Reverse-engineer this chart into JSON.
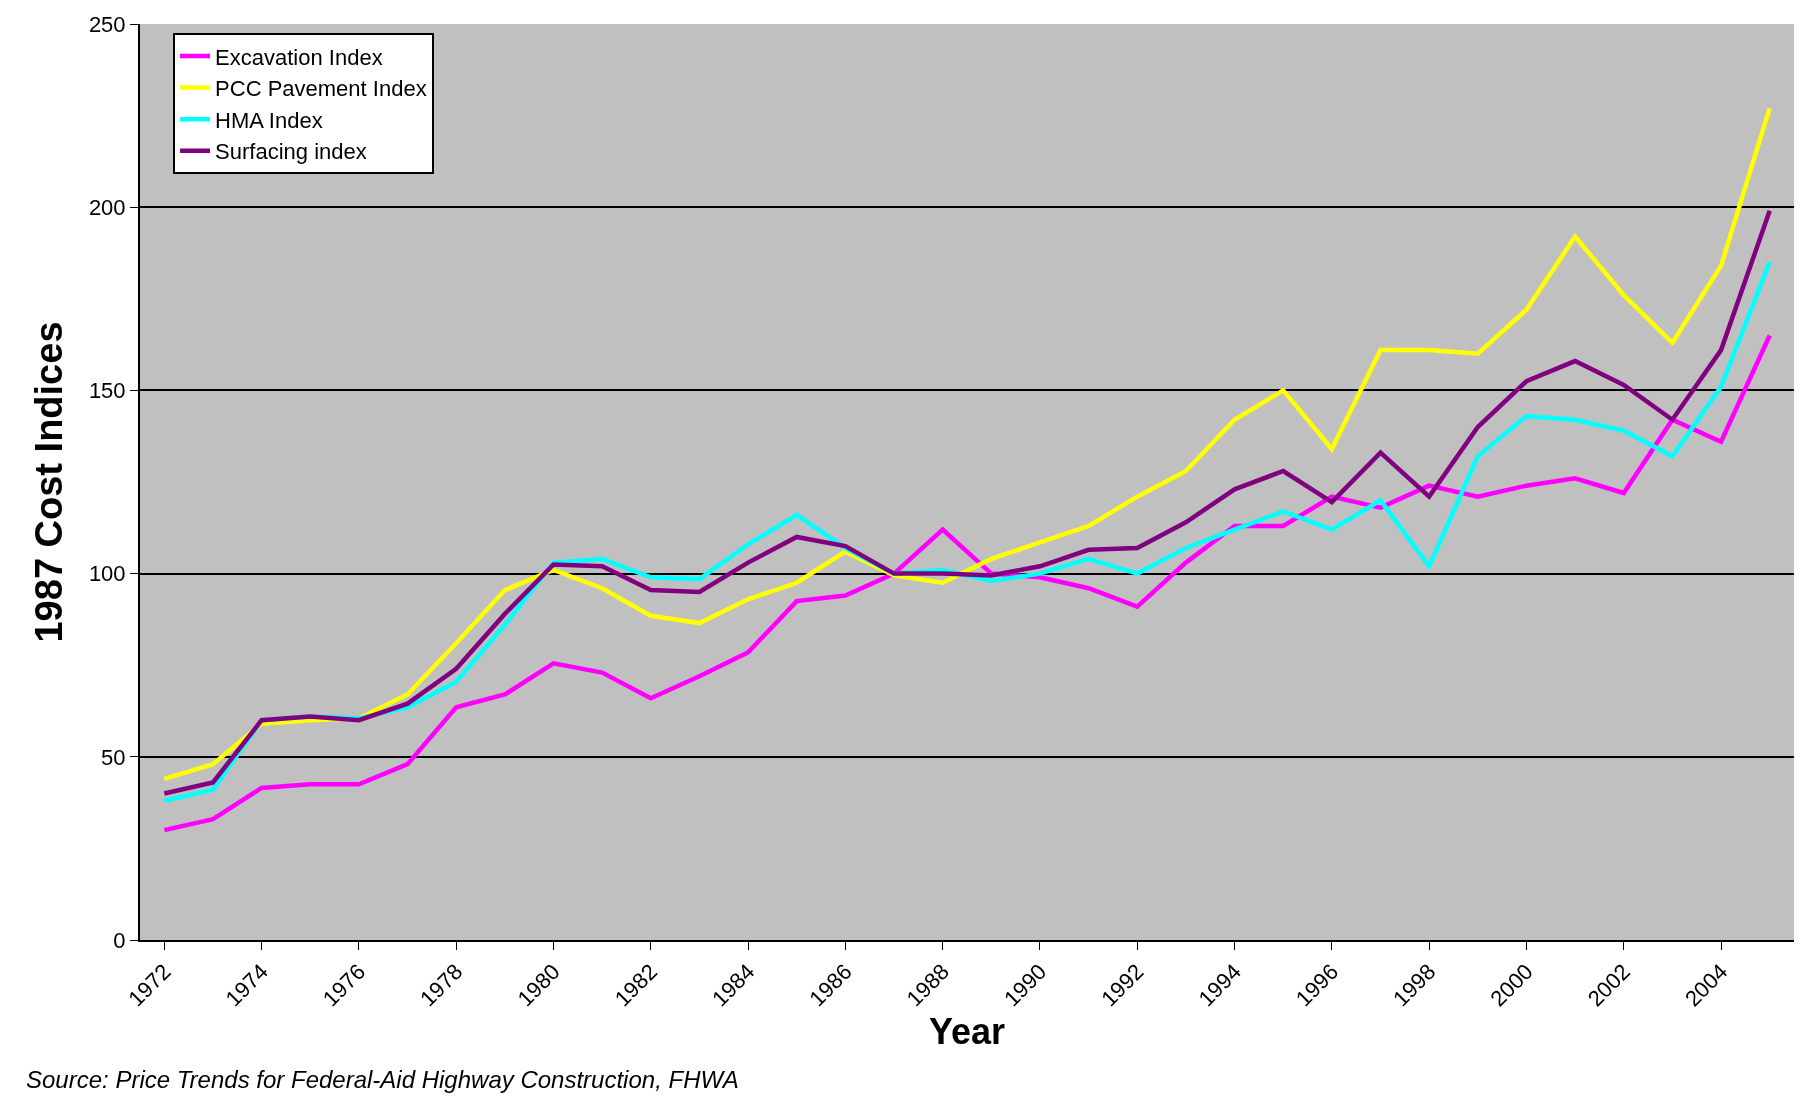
{
  "chart_data": {
    "type": "line",
    "xlabel": "Year",
    "ylabel": "1987 Cost Indices",
    "annotations": [
      "Source: Price Trends for Federal-Aid Highway Construction, FHWA"
    ],
    "categories": [
      "1972",
      null,
      "1974",
      null,
      "1976",
      null,
      "1978",
      null,
      "1980",
      null,
      "1982",
      null,
      "1984",
      null,
      "1986",
      null,
      "1988",
      null,
      "1990",
      null,
      "1992",
      null,
      "1994",
      null,
      "1996",
      null,
      "1998",
      null,
      "2000",
      null,
      "2002",
      null,
      "2004",
      null
    ],
    "series": [
      {
        "name": "Excavation Index",
        "color": "#ff00ff",
        "values": [
          30,
          33,
          41.5,
          42.5,
          42.5,
          48,
          63.5,
          67,
          75.5,
          73,
          66,
          72,
          78.5,
          92.5,
          94,
          100,
          112,
          100,
          99,
          96,
          91,
          103,
          113,
          113,
          121,
          118,
          124,
          121,
          124,
          126,
          122,
          142,
          136,
          165
        ]
      },
      {
        "name": "PCC Pavement Index",
        "color": "#ffff00",
        "values": [
          44,
          48,
          59,
          60,
          60.5,
          67,
          81,
          95.5,
          101,
          96,
          88.5,
          86.5,
          93,
          97.5,
          106,
          99.5,
          97.5,
          104,
          108.5,
          113,
          121,
          128,
          142,
          150,
          134,
          161,
          161,
          160,
          172,
          192,
          176,
          163,
          184,
          227
        ]
      },
      {
        "name": "HMA Index",
        "color": "#00ffff",
        "values": [
          38,
          41,
          60,
          61,
          60.5,
          63.5,
          70.5,
          86,
          103,
          104,
          99,
          98.5,
          108,
          116,
          107,
          100,
          101,
          98,
          100,
          104,
          100,
          107,
          112,
          117,
          112,
          120,
          102,
          132,
          143,
          142,
          139,
          132,
          151,
          185
        ]
      },
      {
        "name": "Surfacing index",
        "color": "#800080",
        "values": [
          40,
          43,
          60,
          61,
          60,
          64.5,
          74,
          89,
          102.5,
          102,
          95.5,
          95,
          103,
          110,
          107.5,
          100,
          100,
          99.5,
          102,
          106.5,
          107,
          114,
          123,
          128,
          119.5,
          133,
          121,
          140,
          152.5,
          158,
          151.5,
          142,
          161,
          199
        ]
      }
    ],
    "ylim": [
      0,
      250
    ],
    "yticks": [
      0,
      50,
      100,
      150,
      200,
      250
    ],
    "grid": "y",
    "legend": "top left",
    "marker": "none",
    "line_style": "solid"
  }
}
